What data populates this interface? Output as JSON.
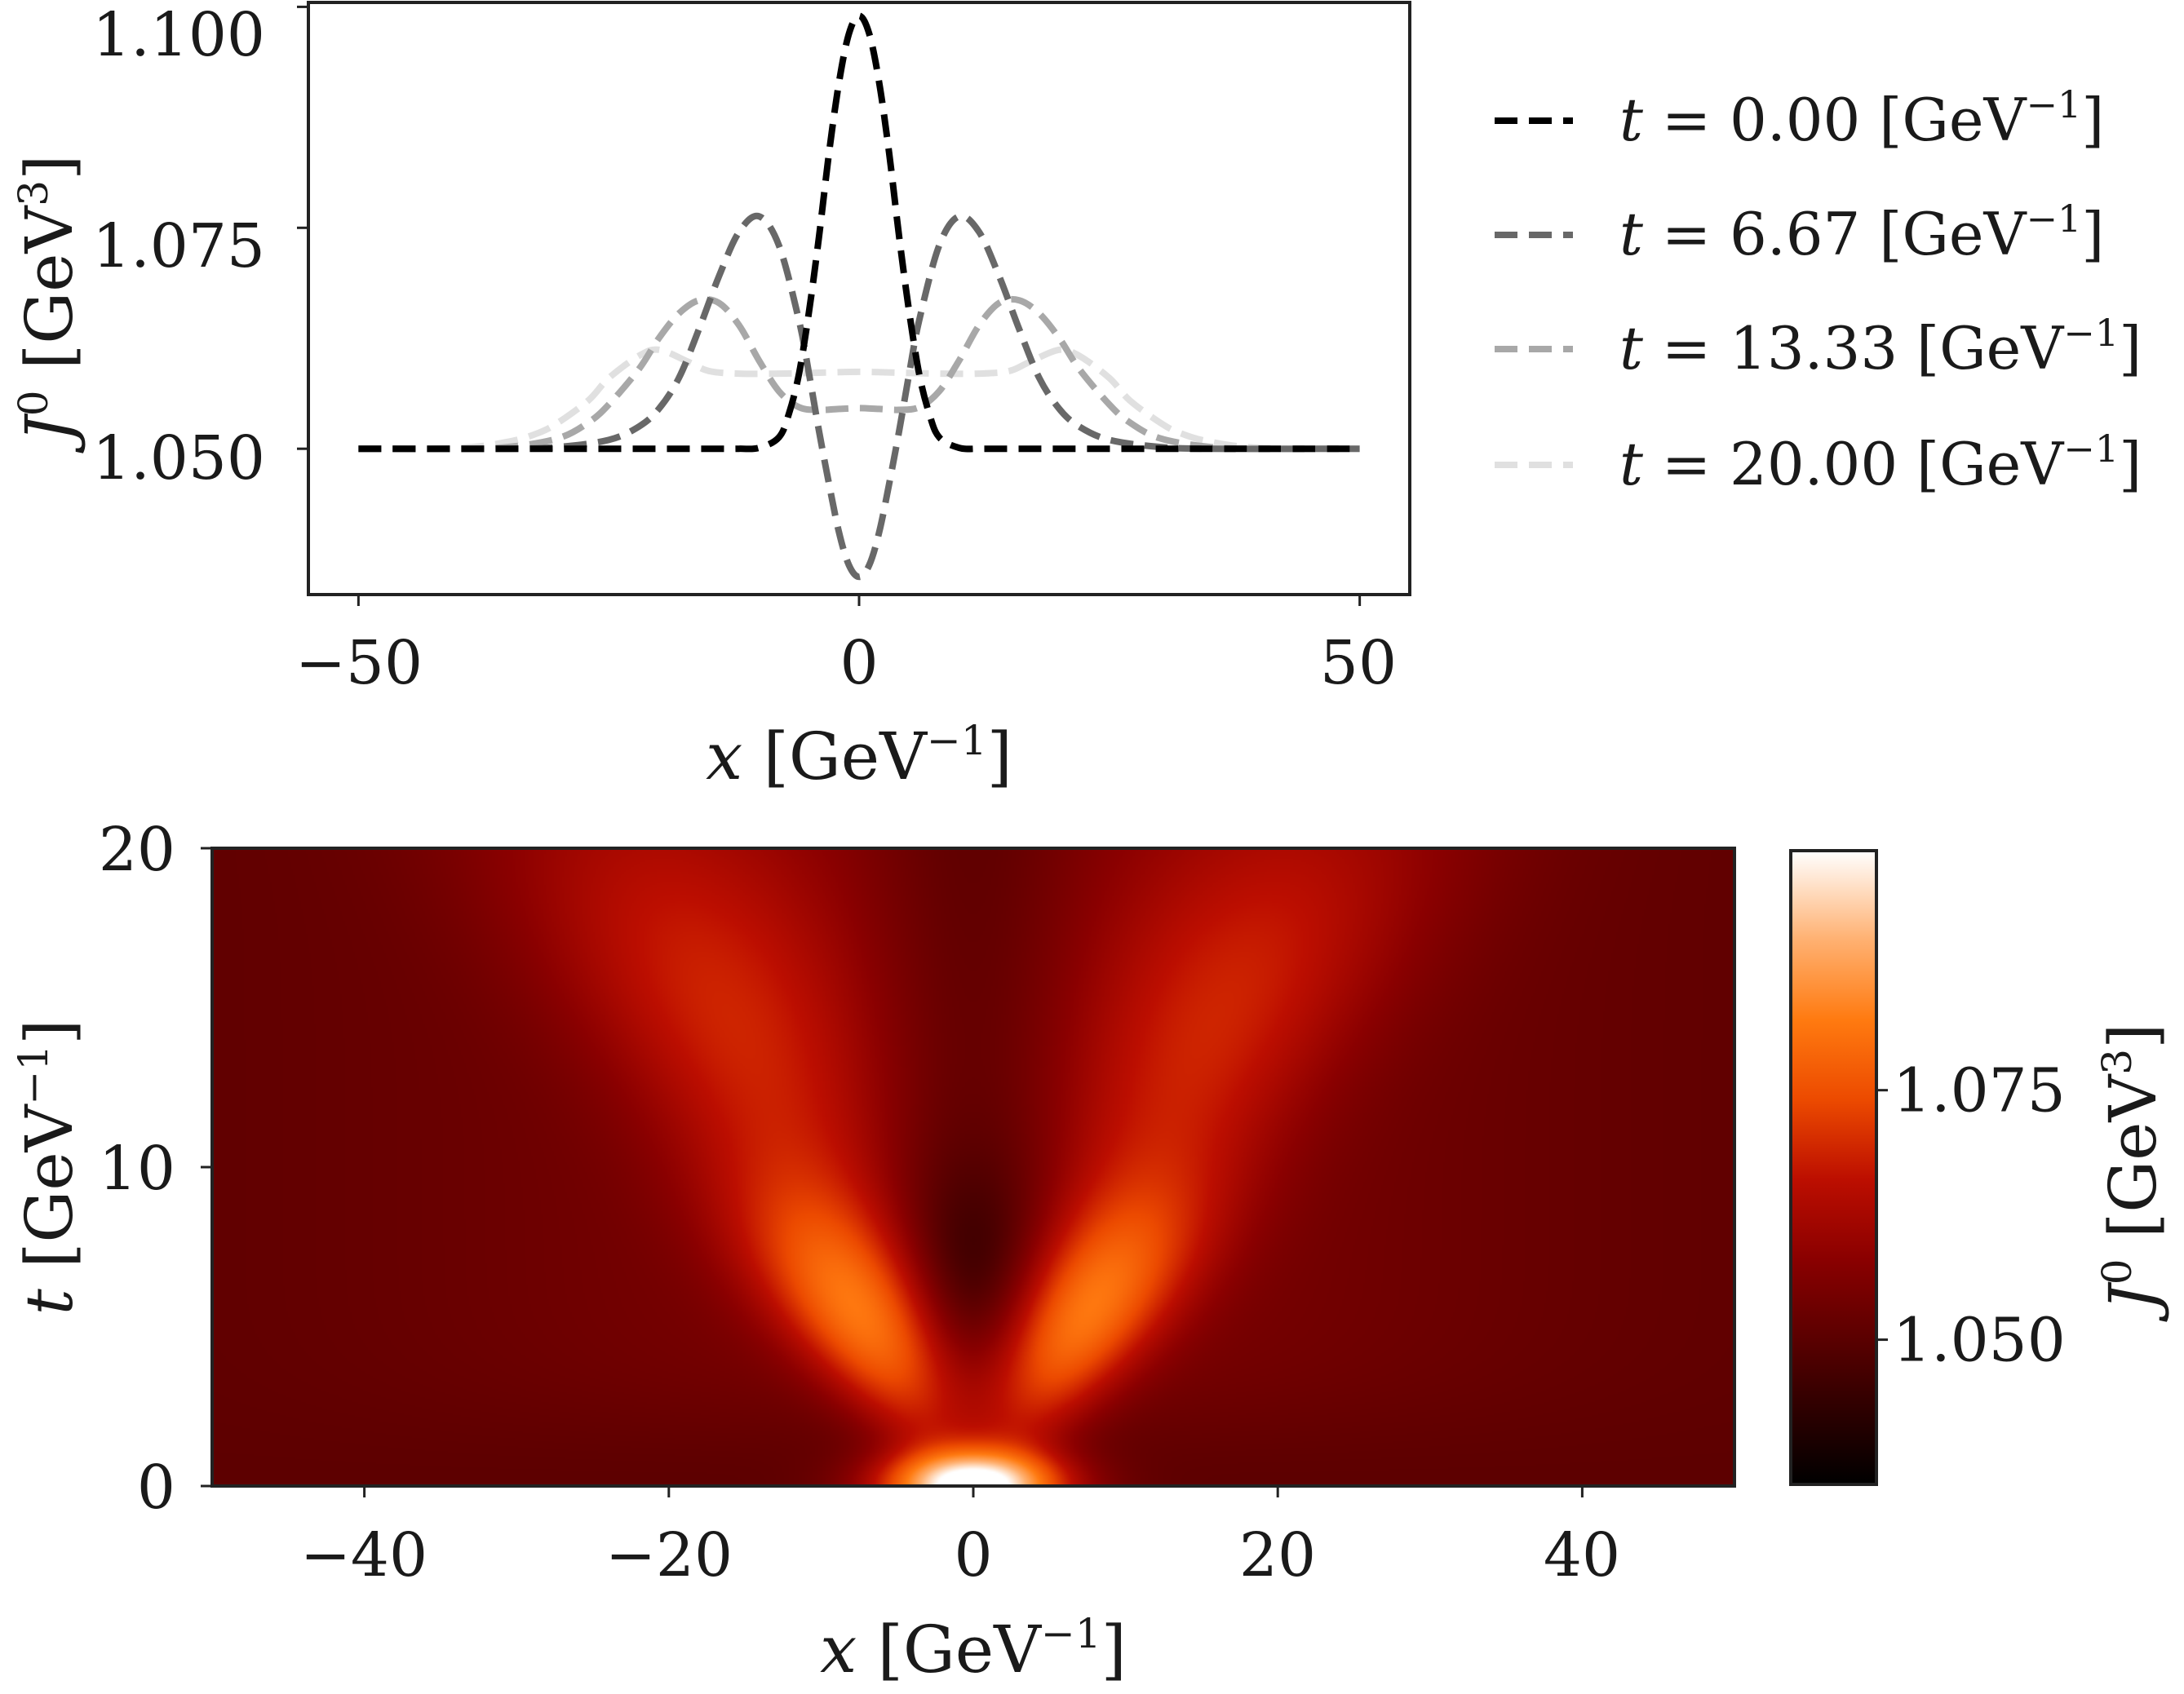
{
  "chart_data": [
    {
      "type": "line",
      "xlabel": {
        "var": "x",
        "unit_base": "GeV",
        "unit_exp": "−1"
      },
      "ylabel": {
        "var": "J",
        "var_sup": "0",
        "unit_base": "GeV",
        "unit_exp": "3"
      },
      "xlim": [
        -55,
        55
      ],
      "ylim": [
        1.0335,
        1.1005
      ],
      "xticks": [
        -50,
        0,
        50
      ],
      "xtick_labels": [
        "−50",
        "0",
        "50"
      ],
      "yticks": [
        1.05,
        1.075,
        1.1
      ],
      "ytick_labels": [
        "1.050",
        "1.075",
        "1.100"
      ],
      "grid": false,
      "legend_position": "outside-right",
      "series": [
        {
          "name": "t = 0.00 [GeV−1]",
          "legend": {
            "var": "t",
            "eq": " = ",
            "value": "0.00",
            "unit_base": "GeV",
            "unit_exp": "−1"
          },
          "color": "#000000",
          "style": "dashed",
          "x": [
            -50,
            -40,
            -30,
            -20,
            -15,
            -12,
            -10,
            -8,
            -7,
            -6,
            -5,
            -4,
            -3,
            -2,
            -1,
            0,
            1,
            2,
            3,
            4,
            5,
            6,
            7,
            8,
            10,
            12,
            15,
            20,
            30,
            40,
            50
          ],
          "y": [
            1.05,
            1.05,
            1.05,
            1.05,
            1.05,
            1.05,
            1.0501,
            1.0513,
            1.054,
            1.0585,
            1.0655,
            1.074,
            1.0835,
            1.0915,
            1.097,
            1.099,
            1.097,
            1.0915,
            1.0835,
            1.074,
            1.0655,
            1.0585,
            1.054,
            1.0513,
            1.0501,
            1.05,
            1.05,
            1.05,
            1.05,
            1.05,
            1.05
          ]
        },
        {
          "name": "t = 6.67 [GeV−1]",
          "legend": {
            "var": "t",
            "eq": " = ",
            "value": "6.67",
            "unit_base": "GeV",
            "unit_exp": "−1"
          },
          "color": "#686868",
          "style": "dashed",
          "x": [
            -50,
            -35,
            -30,
            -25,
            -22,
            -20,
            -18,
            -16,
            -14,
            -12,
            -10,
            -8,
            -6,
            -5,
            -4,
            -3,
            -2,
            -1,
            0,
            1,
            2,
            3,
            4,
            5,
            6,
            8,
            10,
            12,
            14,
            16,
            18,
            20,
            22,
            25,
            30,
            35,
            50
          ],
          "y": [
            1.05,
            1.05,
            1.0502,
            1.051,
            1.0525,
            1.0545,
            1.058,
            1.0635,
            1.0695,
            1.0745,
            1.0763,
            1.073,
            1.0645,
            1.0585,
            1.052,
            1.046,
            1.0405,
            1.0368,
            1.0355,
            1.0368,
            1.0405,
            1.046,
            1.052,
            1.0585,
            1.0645,
            1.073,
            1.0763,
            1.0745,
            1.0695,
            1.0635,
            1.058,
            1.0545,
            1.0525,
            1.051,
            1.0502,
            1.05,
            1.05
          ]
        },
        {
          "name": "t = 13.33 [GeV−1]",
          "legend": {
            "var": "t",
            "eq": " = ",
            "value": "13.33",
            "unit_base": "GeV",
            "unit_exp": "−1"
          },
          "color": "#a8a8a8",
          "style": "dashed",
          "x": [
            -50,
            -40,
            -35,
            -30,
            -27,
            -25,
            -22,
            -20,
            -18,
            -16,
            -14,
            -12,
            -10,
            -8,
            -6,
            -4,
            -2,
            0,
            2,
            4,
            6,
            8,
            10,
            12,
            14,
            16,
            18,
            20,
            22,
            25,
            27,
            30,
            35,
            40,
            50
          ],
          "y": [
            1.05,
            1.05,
            1.0502,
            1.0512,
            1.053,
            1.055,
            1.059,
            1.0625,
            1.0653,
            1.0668,
            1.0665,
            1.064,
            1.06,
            1.0565,
            1.0547,
            1.0544,
            1.0545,
            1.0546,
            1.0545,
            1.0544,
            1.0547,
            1.0565,
            1.06,
            1.064,
            1.0665,
            1.0668,
            1.0653,
            1.0625,
            1.059,
            1.055,
            1.053,
            1.0512,
            1.0502,
            1.05,
            1.05
          ]
        },
        {
          "name": "t = 20.00 [GeV−1]",
          "legend": {
            "var": "t",
            "eq": " = ",
            "value": "20.00",
            "unit_base": "GeV",
            "unit_exp": "−1"
          },
          "color": "#e0e0e0",
          "style": "dashed",
          "x": [
            -50,
            -40,
            -35,
            -32,
            -30,
            -27,
            -25,
            -22,
            -20,
            -17,
            -15,
            -12,
            -8,
            -4,
            0,
            4,
            8,
            12,
            15,
            17,
            20,
            22,
            25,
            27,
            30,
            32,
            35,
            40,
            50
          ],
          "y": [
            1.05,
            1.0501,
            1.0508,
            1.0518,
            1.053,
            1.0555,
            1.058,
            1.0605,
            1.0612,
            1.0598,
            1.0588,
            1.0585,
            1.0585,
            1.0586,
            1.0587,
            1.0586,
            1.0585,
            1.0585,
            1.0588,
            1.0598,
            1.0612,
            1.0605,
            1.058,
            1.0555,
            1.053,
            1.0518,
            1.0508,
            1.0501,
            1.05
          ]
        }
      ]
    },
    {
      "type": "heatmap",
      "xlabel": {
        "var": "x",
        "unit_base": "GeV",
        "unit_exp": "−1"
      },
      "ylabel": {
        "var": "t",
        "unit_base": "GeV",
        "unit_exp": "−1"
      },
      "xlim": [
        -50,
        50
      ],
      "ylim": [
        0,
        20
      ],
      "xticks": [
        -40,
        -20,
        0,
        20,
        40
      ],
      "xtick_labels": [
        "−40",
        "−20",
        "0",
        "20",
        "40"
      ],
      "yticks": [
        0,
        10,
        20
      ],
      "ytick_labels": [
        "0",
        "10",
        "20"
      ],
      "colormap": "gist_heat",
      "colorbar": {
        "label": {
          "var": "J",
          "var_sup": "0",
          "unit_base": "GeV",
          "unit_exp": "3"
        },
        "vmin": 1.0355,
        "vmax": 1.099,
        "ticks": [
          1.05,
          1.075
        ],
        "tick_labels": [
          "1.050",
          "1.075"
        ],
        "stops": [
          {
            "value": 1.0355,
            "color": "#000000"
          },
          {
            "value": 1.045,
            "color": "#3a0000"
          },
          {
            "value": 1.05,
            "color": "#5a0000"
          },
          {
            "value": 1.058,
            "color": "#8a0000"
          },
          {
            "value": 1.066,
            "color": "#bc0e00"
          },
          {
            "value": 1.074,
            "color": "#ec4a00"
          },
          {
            "value": 1.082,
            "color": "#ff7a10"
          },
          {
            "value": 1.09,
            "color": "#ffb070"
          },
          {
            "value": 1.099,
            "color": "#ffffff"
          }
        ]
      },
      "features": [
        {
          "description": "background value",
          "value": 1.0505
        },
        {
          "t": 0,
          "x": 0,
          "value": 1.099
        },
        {
          "t": 6,
          "x": 0,
          "value": 1.0355
        },
        {
          "t": 6,
          "x": -11,
          "value": 1.078
        },
        {
          "t": 6,
          "x": 11,
          "value": 1.078
        },
        {
          "t": 15,
          "x": -15,
          "value": 1.064
        },
        {
          "t": 15,
          "x": 15,
          "value": 1.064
        }
      ]
    }
  ]
}
